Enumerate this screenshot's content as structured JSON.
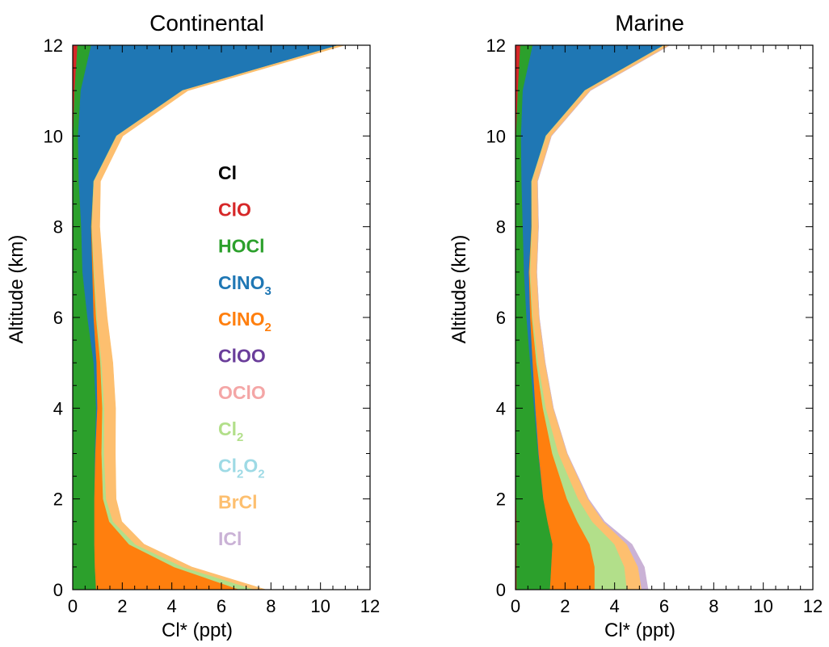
{
  "chart_data": [
    {
      "type": "area",
      "title": "Continental",
      "xlabel": "Cl* (ppt)",
      "ylabel": "Altitude (km)",
      "xlim": [
        0,
        12
      ],
      "ylim": [
        0,
        12
      ],
      "xticks": [
        "0",
        "2",
        "4",
        "6",
        "8",
        "10",
        "12"
      ],
      "yticks": [
        "0",
        "2",
        "4",
        "6",
        "8",
        "10",
        "12"
      ],
      "stack_order": [
        "Cl",
        "ClO",
        "HOCl",
        "ClNO3",
        "ClNO2",
        "ClOO",
        "OClO",
        "Cl2",
        "Cl2O2",
        "BrCl",
        "ICl"
      ],
      "altitude": [
        0,
        0.5,
        1,
        1.5,
        2,
        3,
        4,
        5,
        6,
        7,
        8,
        9,
        10,
        11,
        12
      ],
      "series": [
        {
          "name": "Cl",
          "values": [
            0,
            0,
            0,
            0,
            0,
            0,
            0,
            0,
            0,
            0,
            0,
            0,
            0,
            0,
            0
          ]
        },
        {
          "name": "ClO",
          "values": [
            0,
            0,
            0,
            0,
            0,
            0,
            0,
            0,
            0,
            0,
            0,
            0,
            0.02,
            0.08,
            0.2
          ]
        },
        {
          "name": "HOCl",
          "values": [
            0.95,
            0.9,
            0.88,
            0.88,
            0.88,
            0.9,
            0.95,
            0.85,
            0.6,
            0.4,
            0.35,
            0.25,
            0.2,
            0.25,
            0.55
          ]
        },
        {
          "name": "ClNO3",
          "values": [
            0,
            0,
            0,
            0,
            0,
            0.02,
            0.05,
            0.12,
            0.25,
            0.4,
            0.4,
            0.6,
            1.55,
            4.1,
            10.0
          ]
        },
        {
          "name": "ClNO2",
          "values": [
            5.8,
            3.2,
            1.4,
            0.6,
            0.35,
            0.25,
            0.2,
            0.15,
            0.1,
            0.05,
            0.02,
            0,
            0,
            0,
            0
          ]
        },
        {
          "name": "ClOO",
          "values": [
            0,
            0,
            0,
            0,
            0,
            0,
            0,
            0,
            0,
            0,
            0,
            0,
            0,
            0,
            0
          ]
        },
        {
          "name": "OClO",
          "values": [
            0,
            0,
            0,
            0,
            0,
            0,
            0,
            0,
            0,
            0,
            0,
            0,
            0,
            0,
            0
          ]
        },
        {
          "name": "Cl2",
          "values": [
            0.6,
            0.35,
            0.25,
            0.15,
            0.12,
            0.1,
            0.08,
            0.05,
            0.04,
            0.03,
            0.02,
            0.02,
            0.02,
            0.02,
            0.02
          ]
        },
        {
          "name": "Cl2O2",
          "values": [
            0,
            0,
            0,
            0,
            0,
            0,
            0,
            0,
            0,
            0,
            0,
            0,
            0,
            0,
            0
          ]
        },
        {
          "name": "BrCl",
          "values": [
            0.45,
            0.35,
            0.35,
            0.35,
            0.4,
            0.45,
            0.45,
            0.45,
            0.4,
            0.35,
            0.3,
            0.25,
            0.23,
            0.2,
            0.2
          ]
        },
        {
          "name": "ICl",
          "values": [
            0,
            0,
            0,
            0,
            0,
            0,
            0,
            0,
            0,
            0,
            0,
            0,
            0,
            0,
            0
          ]
        }
      ]
    },
    {
      "type": "area",
      "title": "Marine",
      "xlabel": "Cl* (ppt)",
      "ylabel": "Altitude (km)",
      "xlim": [
        0,
        12
      ],
      "ylim": [
        0,
        12
      ],
      "xticks": [
        "0",
        "2",
        "4",
        "6",
        "8",
        "10",
        "12"
      ],
      "yticks": [
        "0",
        "2",
        "4",
        "6",
        "8",
        "10",
        "12"
      ],
      "stack_order": [
        "Cl",
        "ClO",
        "HOCl",
        "ClNO3",
        "ClNO2",
        "ClOO",
        "OClO",
        "Cl2",
        "Cl2O2",
        "BrCl",
        "ICl"
      ],
      "altitude": [
        0,
        0.5,
        1,
        1.5,
        2,
        3,
        4,
        5,
        6,
        7,
        8,
        9,
        10,
        11,
        12
      ],
      "series": [
        {
          "name": "Cl",
          "values": [
            0,
            0,
            0,
            0,
            0,
            0,
            0,
            0,
            0,
            0,
            0,
            0,
            0,
            0,
            0
          ]
        },
        {
          "name": "ClO",
          "values": [
            0.05,
            0.05,
            0.05,
            0.05,
            0.03,
            0.02,
            0.01,
            0,
            0,
            0,
            0,
            0,
            0.03,
            0.1,
            0.2
          ]
        },
        {
          "name": "HOCl",
          "values": [
            1.35,
            1.4,
            1.45,
            1.25,
            1.1,
            0.9,
            0.75,
            0.6,
            0.45,
            0.35,
            0.3,
            0.25,
            0.2,
            0.2,
            0.5
          ]
        },
        {
          "name": "ClNO3",
          "values": [
            0,
            0,
            0,
            0,
            0,
            0.02,
            0.05,
            0.1,
            0.15,
            0.2,
            0.35,
            0.4,
            1.0,
            2.5,
            5.3
          ]
        },
        {
          "name": "ClNO2",
          "values": [
            1.8,
            1.75,
            1.5,
            1.2,
            0.95,
            0.55,
            0.3,
            0.15,
            0.07,
            0.03,
            0.01,
            0,
            0,
            0,
            0
          ]
        },
        {
          "name": "ClOO",
          "values": [
            0,
            0,
            0,
            0,
            0,
            0,
            0,
            0,
            0,
            0,
            0,
            0,
            0,
            0,
            0
          ]
        },
        {
          "name": "OClO",
          "values": [
            0,
            0,
            0,
            0,
            0,
            0,
            0,
            0,
            0,
            0,
            0,
            0,
            0,
            0,
            0
          ]
        },
        {
          "name": "Cl2",
          "values": [
            1.3,
            1.2,
            1.0,
            0.6,
            0.45,
            0.25,
            0.12,
            0.07,
            0.04,
            0.03,
            0.02,
            0.02,
            0.02,
            0.02,
            0.02
          ]
        },
        {
          "name": "Cl2O2",
          "values": [
            0,
            0,
            0,
            0,
            0,
            0,
            0,
            0,
            0,
            0,
            0,
            0,
            0,
            0,
            0
          ]
        },
        {
          "name": "BrCl",
          "values": [
            0.6,
            0.55,
            0.5,
            0.45,
            0.4,
            0.35,
            0.3,
            0.28,
            0.25,
            0.25,
            0.25,
            0.22,
            0.2,
            0.2,
            0.2
          ]
        },
        {
          "name": "ICl",
          "values": [
            0.25,
            0.25,
            0.2,
            0.05,
            0.02,
            0,
            0,
            0,
            0,
            0,
            0,
            0,
            0,
            0,
            0
          ]
        }
      ]
    }
  ],
  "legend": {
    "placement": "inside continental panel, center",
    "entries": [
      {
        "key": "Cl",
        "base": "Cl",
        "subs": [],
        "color": "#000000"
      },
      {
        "key": "ClO",
        "base": "ClO",
        "subs": [],
        "color": "#d62728"
      },
      {
        "key": "HOCl",
        "base": "HOCl",
        "subs": [],
        "color": "#2ca02c"
      },
      {
        "key": "ClNO3",
        "base": "ClNO",
        "subs": [
          [
            "",
            "3"
          ]
        ],
        "color": "#1f77b4"
      },
      {
        "key": "ClNO2",
        "base": "ClNO",
        "subs": [
          [
            "",
            "2"
          ]
        ],
        "color": "#ff7f0e"
      },
      {
        "key": "ClOO",
        "base": "ClOO",
        "subs": [],
        "color": "#6a3d9a"
      },
      {
        "key": "OClO",
        "base": "OClO",
        "subs": [],
        "color": "#f4a6a6"
      },
      {
        "key": "Cl2",
        "base": "Cl",
        "subs": [
          [
            "",
            "2"
          ]
        ],
        "color": "#b2df8a"
      },
      {
        "key": "Cl2O2",
        "base": "Cl",
        "subs": [
          [
            "",
            "2"
          ],
          [
            "O",
            "2"
          ]
        ],
        "color": "#9edae5"
      },
      {
        "key": "BrCl",
        "base": "BrCl",
        "subs": [],
        "color": "#fdbf6f"
      },
      {
        "key": "ICl",
        "base": "ICl",
        "subs": [],
        "color": "#cab2d6"
      }
    ]
  }
}
